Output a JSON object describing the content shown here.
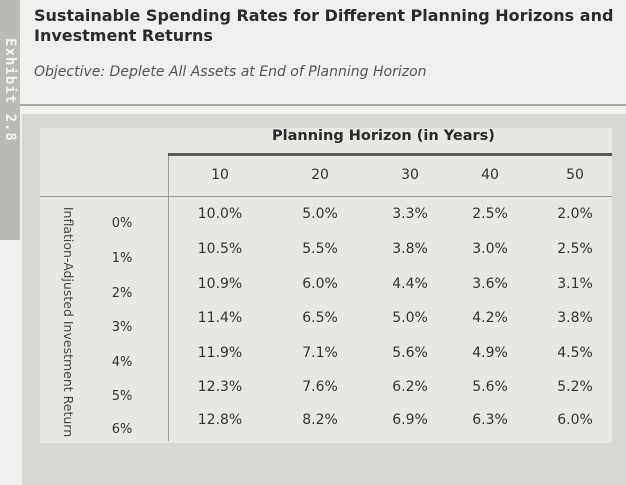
{
  "exhibit_tab": "Exhibit 2.8",
  "title": "Sustainable Spending Rates for Different Planning Horizons and Investment Returns",
  "subtitle": "Objective: Deplete All Assets at End of Planning Horizon",
  "table": {
    "column_group_label": "Planning Horizon (in Years)",
    "row_group_label": "Inflation-Adjusted Investment Return",
    "columns": [
      "10",
      "20",
      "30",
      "40",
      "50"
    ],
    "rows": [
      {
        "return": "0%",
        "values": [
          "10.0%",
          "5.0%",
          "3.3%",
          "2.5%",
          "2.0%"
        ]
      },
      {
        "return": "1%",
        "values": [
          "10.5%",
          "5.5%",
          "3.8%",
          "3.0%",
          "2.5%"
        ]
      },
      {
        "return": "2%",
        "values": [
          "10.9%",
          "6.0%",
          "4.4%",
          "3.6%",
          "3.1%"
        ]
      },
      {
        "return": "3%",
        "values": [
          "11.4%",
          "6.5%",
          "5.0%",
          "4.2%",
          "3.8%"
        ]
      },
      {
        "return": "4%",
        "values": [
          "11.9%",
          "7.1%",
          "5.6%",
          "4.9%",
          "4.5%"
        ]
      },
      {
        "return": "5%",
        "values": [
          "12.3%",
          "7.6%",
          "6.2%",
          "5.6%",
          "5.2%"
        ]
      },
      {
        "return": "6%",
        "values": [
          "12.8%",
          "8.2%",
          "6.9%",
          "6.3%",
          "6.0%"
        ]
      }
    ]
  }
}
